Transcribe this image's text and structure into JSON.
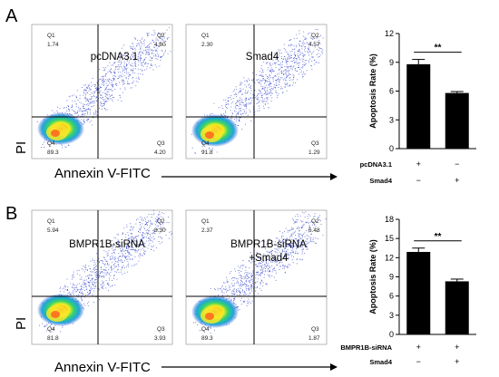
{
  "panels": [
    {
      "letter": "A",
      "x_axis_label": "Annexin V-FITC",
      "y_axis_label": "PI",
      "flow_plots": [
        {
          "sample": "pcDNA3.1",
          "q1_label": "Q1",
          "q1": "1.74",
          "q2_label": "Q2",
          "q2": "4.80",
          "q3_label": "Q3",
          "q3": "4.20",
          "q4_label": "Q4",
          "q4": "89.3"
        },
        {
          "sample": "Smad4",
          "q1_label": "Q1",
          "q1": "2.30",
          "q2_label": "Q2",
          "q2": "4.57",
          "q3_label": "Q3",
          "q3": "1.29",
          "q4_label": "Q4",
          "q4": "91.8"
        }
      ]
    },
    {
      "letter": "B",
      "x_axis_label": "Annexin V-FITC",
      "y_axis_label": "PI",
      "flow_plots": [
        {
          "sample": "BMPR1B-siRNA",
          "sample_line2": "",
          "q1_label": "Q1",
          "q1": "5.94",
          "q2_label": "Q2",
          "q2": "8.30",
          "q3_label": "Q3",
          "q3": "3.93",
          "q4_label": "Q4",
          "q4": "81.8"
        },
        {
          "sample": "BMPR1B-siRNA",
          "sample_line2": "+Smad4",
          "q1_label": "Q1",
          "q1": "2.37",
          "q2_label": "Q2",
          "q2": "6.48",
          "q3_label": "Q3",
          "q3": "1.87",
          "q4_label": "Q4",
          "q4": "89.3"
        }
      ]
    }
  ],
  "chart_data": [
    {
      "type": "bar",
      "ylabel": "Apoptosis Rate (%)",
      "ylim": [
        0,
        12
      ],
      "yticks": [
        0,
        3,
        6,
        9,
        12
      ],
      "values": [
        8.8,
        5.8
      ],
      "errors": [
        0.5,
        0.15
      ],
      "bar_color": "#000000",
      "significance": "**",
      "group_rows": [
        {
          "label": "pcDNA3.1",
          "symbols": [
            "+",
            "−"
          ]
        },
        {
          "label": "Smad4",
          "symbols": [
            "−",
            "+"
          ]
        }
      ]
    },
    {
      "type": "bar",
      "ylabel": "Apoptosis Rate (%)",
      "ylim": [
        0,
        18
      ],
      "yticks": [
        0,
        3,
        6,
        9,
        12,
        15,
        18
      ],
      "values": [
        12.9,
        8.3
      ],
      "errors": [
        0.6,
        0.35
      ],
      "bar_color": "#000000",
      "significance": "**",
      "group_rows": [
        {
          "label": "BMPR1B-siRNA",
          "symbols": [
            "+",
            "+"
          ]
        },
        {
          "label": "Smad4",
          "symbols": [
            "−",
            "+"
          ]
        }
      ]
    }
  ]
}
